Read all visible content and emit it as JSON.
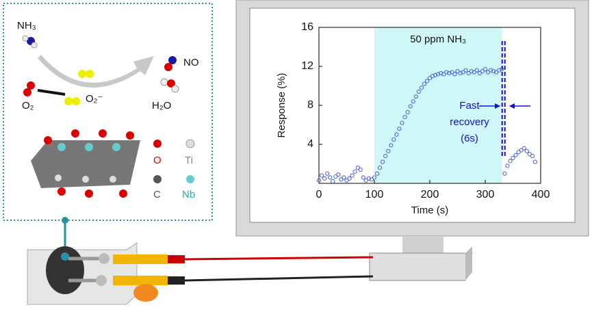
{
  "chart_data": {
    "type": "scatter",
    "annotation": "50 ppm NH₃",
    "callout": [
      "Fast",
      "recovery",
      "(6s)"
    ],
    "xlabel": "Time (s)",
    "ylabel": "Response (%)",
    "shade_range": [
      100,
      330
    ],
    "recovery_line": 333,
    "color": "#4a5fd8",
    "shade_color": "#cff7f8",
    "x": [
      0,
      5,
      10,
      15,
      20,
      25,
      30,
      35,
      40,
      45,
      50,
      55,
      60,
      65,
      70,
      75,
      80,
      85,
      90,
      95,
      100,
      105,
      110,
      115,
      120,
      125,
      130,
      135,
      140,
      145,
      150,
      155,
      160,
      165,
      170,
      175,
      180,
      185,
      190,
      195,
      200,
      205,
      210,
      215,
      220,
      225,
      230,
      235,
      240,
      245,
      250,
      255,
      260,
      265,
      270,
      275,
      280,
      285,
      290,
      295,
      300,
      305,
      310,
      315,
      320,
      325,
      330,
      335,
      340,
      345,
      350,
      355,
      360,
      365,
      370,
      375,
      380,
      385,
      390
    ],
    "values": [
      0.3,
      0.8,
      0.5,
      1.0,
      0.6,
      0.2,
      0.7,
      0.9,
      0.4,
      0.6,
      0.3,
      0.5,
      0.8,
      1.2,
      1.6,
      1.4,
      0.6,
      0.3,
      0.5,
      0.4,
      0.6,
      1.0,
      1.6,
      2.2,
      2.8,
      3.3,
      3.9,
      4.5,
      5.0,
      5.6,
      6.2,
      6.8,
      7.3,
      7.9,
      8.4,
      8.9,
      9.4,
      9.8,
      10.2,
      10.5,
      10.8,
      11.0,
      11.1,
      11.2,
      11.3,
      11.2,
      11.4,
      11.3,
      11.4,
      11.2,
      11.5,
      11.3,
      11.4,
      11.6,
      11.3,
      11.5,
      11.4,
      11.6,
      11.3,
      11.5,
      11.7,
      11.4,
      11.6,
      11.5,
      11.4,
      11.6,
      11.7,
      1.0,
      1.8,
      2.3,
      2.6,
      2.9,
      3.2,
      3.4,
      3.6,
      3.3,
      3.0,
      2.8,
      2.2
    ],
    "xlim": [
      0,
      400
    ],
    "xticks": [
      0,
      100,
      200,
      300,
      400
    ],
    "ylim": [
      0,
      16
    ],
    "yticks": [
      4,
      8,
      12,
      16
    ]
  },
  "diagram": {
    "labels": [
      "NH₃",
      "NO",
      "O₂",
      "O₂⁻",
      "H₂O"
    ],
    "legend": [
      "O",
      "Ti",
      "C",
      "Nb"
    ]
  }
}
